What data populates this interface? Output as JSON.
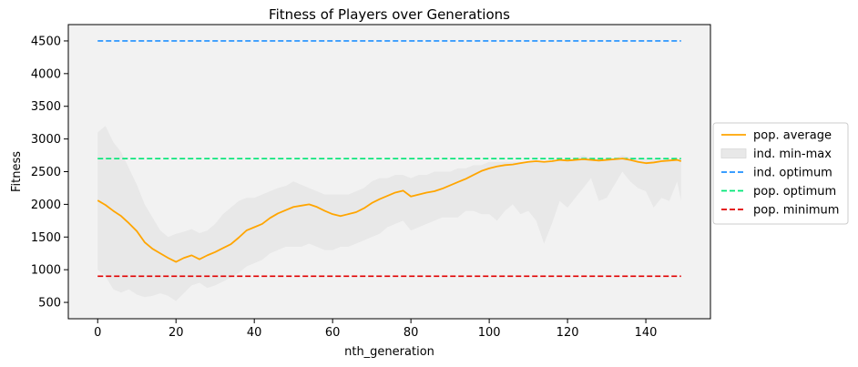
{
  "chart_data": {
    "type": "line",
    "title": "Fitness of Players over Generations",
    "xlabel": "nth_generation",
    "ylabel": "Fitness",
    "xlim": [
      -7.5,
      156.5
    ],
    "ylim": [
      250,
      4750
    ],
    "xticks": [
      0,
      20,
      40,
      60,
      80,
      100,
      120,
      140
    ],
    "yticks": [
      500,
      1000,
      1500,
      2000,
      2500,
      3000,
      3500,
      4000,
      4500
    ],
    "grid": false,
    "legend_position": "right",
    "colors": {
      "pop_average": "#ffa500",
      "band": "#e8e8e8",
      "ind_optimum": "#1e90ff",
      "pop_optimum": "#00e676",
      "pop_minimum": "#e00000",
      "plot_background": "#f2f2f2"
    },
    "series": [
      {
        "name": "pop. average",
        "style": "solid",
        "x": [
          0,
          2,
          4,
          6,
          8,
          10,
          12,
          14,
          16,
          18,
          20,
          22,
          24,
          26,
          28,
          30,
          32,
          34,
          36,
          38,
          40,
          42,
          44,
          46,
          48,
          50,
          52,
          54,
          56,
          58,
          60,
          62,
          64,
          66,
          68,
          70,
          72,
          74,
          76,
          78,
          80,
          82,
          84,
          86,
          88,
          90,
          92,
          94,
          96,
          98,
          100,
          102,
          104,
          106,
          108,
          110,
          112,
          114,
          116,
          118,
          120,
          122,
          124,
          126,
          128,
          130,
          132,
          134,
          136,
          138,
          140,
          142,
          144,
          146,
          148,
          149
        ],
        "values": [
          2060,
          1990,
          1900,
          1820,
          1710,
          1590,
          1420,
          1320,
          1250,
          1180,
          1120,
          1180,
          1220,
          1160,
          1220,
          1270,
          1330,
          1390,
          1490,
          1600,
          1650,
          1700,
          1790,
          1860,
          1910,
          1960,
          1980,
          2000,
          1960,
          1900,
          1850,
          1820,
          1850,
          1880,
          1940,
          2020,
          2080,
          2130,
          2180,
          2210,
          2120,
          2150,
          2180,
          2200,
          2240,
          2290,
          2340,
          2390,
          2450,
          2510,
          2550,
          2580,
          2600,
          2610,
          2630,
          2650,
          2660,
          2650,
          2660,
          2680,
          2670,
          2680,
          2690,
          2680,
          2670,
          2680,
          2690,
          2700,
          2680,
          2650,
          2630,
          2640,
          2660,
          2670,
          2680,
          2660
        ]
      },
      {
        "name": "ind. min-max",
        "style": "band",
        "x": [
          0,
          2,
          4,
          6,
          8,
          10,
          12,
          14,
          16,
          18,
          20,
          22,
          24,
          26,
          28,
          30,
          32,
          34,
          36,
          38,
          40,
          42,
          44,
          46,
          48,
          50,
          52,
          54,
          56,
          58,
          60,
          62,
          64,
          66,
          68,
          70,
          72,
          74,
          76,
          78,
          80,
          82,
          84,
          86,
          88,
          90,
          92,
          94,
          96,
          98,
          100,
          102,
          104,
          106,
          108,
          110,
          112,
          114,
          116,
          118,
          120,
          122,
          124,
          126,
          128,
          130,
          132,
          134,
          136,
          138,
          140,
          142,
          144,
          146,
          148,
          149
        ],
        "upper": [
          3100,
          3200,
          2950,
          2800,
          2550,
          2300,
          2000,
          1800,
          1600,
          1500,
          1550,
          1580,
          1620,
          1560,
          1600,
          1700,
          1850,
          1950,
          2050,
          2100,
          2100,
          2150,
          2200,
          2250,
          2280,
          2350,
          2300,
          2250,
          2200,
          2150,
          2150,
          2150,
          2150,
          2200,
          2250,
          2350,
          2400,
          2400,
          2450,
          2450,
          2400,
          2450,
          2450,
          2500,
          2500,
          2500,
          2550,
          2550,
          2600,
          2600,
          2650,
          2650,
          2650,
          2650,
          2650,
          2650,
          2650,
          2650,
          2650,
          2700,
          2650,
          2700,
          2750,
          2700,
          2700,
          2700,
          2700,
          2750,
          2720,
          2700,
          2700,
          2700,
          2700,
          2700,
          2700,
          2700
        ],
        "lower": [
          1000,
          900,
          700,
          650,
          700,
          620,
          580,
          600,
          640,
          600,
          520,
          640,
          760,
          800,
          720,
          760,
          820,
          880,
          950,
          1050,
          1100,
          1150,
          1250,
          1300,
          1350,
          1350,
          1350,
          1400,
          1350,
          1300,
          1300,
          1350,
          1350,
          1400,
          1450,
          1500,
          1550,
          1650,
          1700,
          1750,
          1600,
          1650,
          1700,
          1750,
          1800,
          1800,
          1800,
          1900,
          1900,
          1850,
          1850,
          1750,
          1900,
          2000,
          1850,
          1900,
          1750,
          1400,
          1700,
          2050,
          1950,
          2100,
          2250,
          2400,
          2050,
          2100,
          2300,
          2500,
          2350,
          2250,
          2200,
          1950,
          2100,
          2050,
          2350,
          2050
        ]
      },
      {
        "name": "ind. optimum",
        "style": "dashed",
        "x": [
          0,
          149
        ],
        "values": [
          4500,
          4500
        ]
      },
      {
        "name": "pop. optimum",
        "style": "dashed",
        "x": [
          0,
          149
        ],
        "values": [
          2700,
          2700
        ]
      },
      {
        "name": "pop. minimum",
        "style": "dashed",
        "x": [
          0,
          149
        ],
        "values": [
          900,
          900
        ]
      }
    ]
  }
}
